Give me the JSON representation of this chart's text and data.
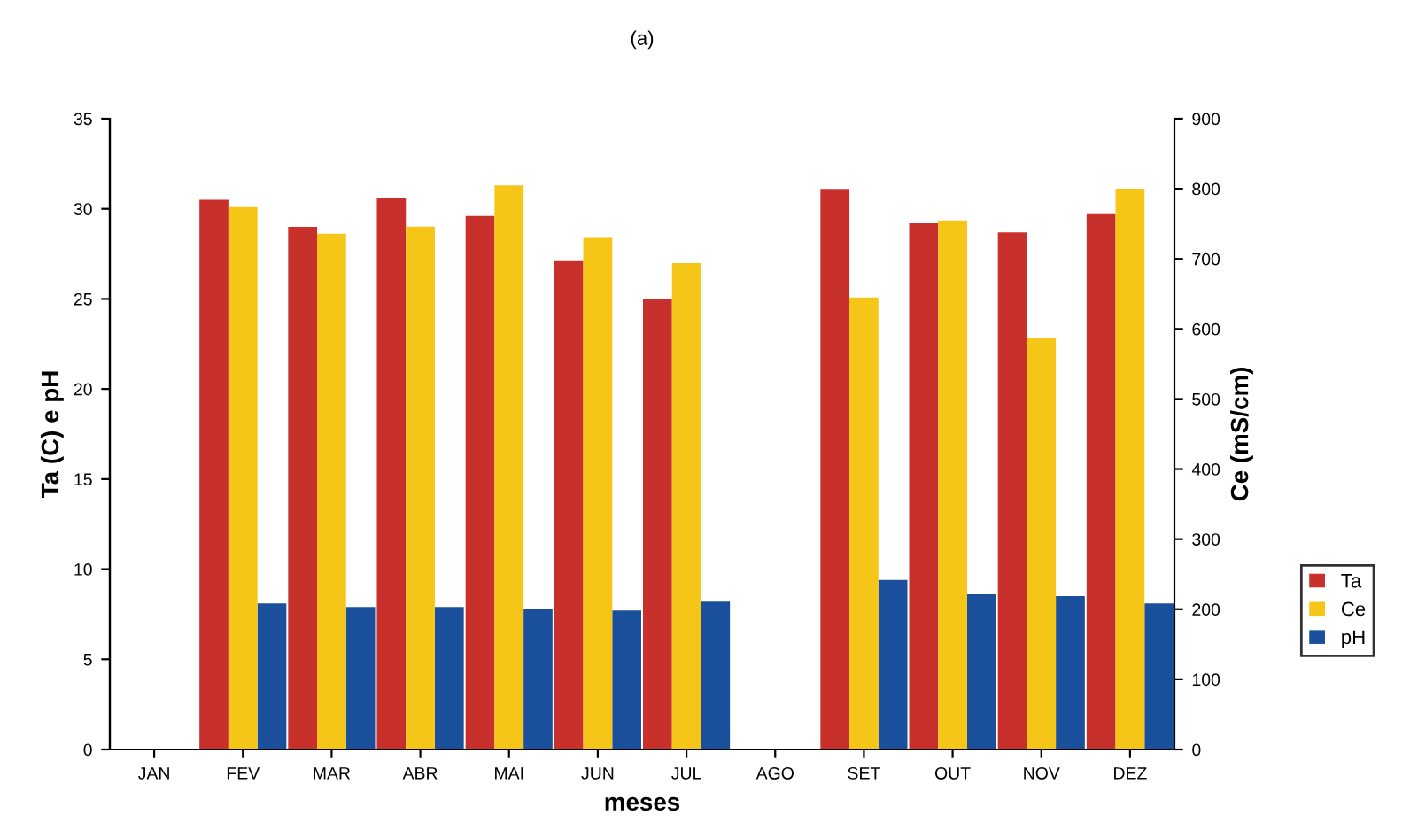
{
  "chart_data": {
    "type": "bar",
    "title": "(a)",
    "xlabel": "meses",
    "ylabel": "Ta (C) e pH",
    "y2label": "Ce (mS/cm)",
    "categories": [
      "JAN",
      "FEV",
      "MAR",
      "ABR",
      "MAI",
      "JUN",
      "JUL",
      "AGO",
      "SET",
      "OUT",
      "NOV",
      "DEZ"
    ],
    "series": [
      {
        "name": "Ta",
        "color": "#c8302c",
        "values": [
          null,
          30.5,
          29.0,
          30.6,
          29.6,
          27.1,
          25.0,
          null,
          31.1,
          29.2,
          28.7,
          29.7
        ]
      },
      {
        "name": "Ce",
        "color": "#f5c518",
        "axis": "y2",
        "values": [
          null,
          774,
          736,
          746,
          805,
          730,
          694,
          null,
          645,
          755,
          587,
          800
        ]
      },
      {
        "name": "pH",
        "color": "#1a4f9c",
        "values": [
          null,
          8.1,
          7.9,
          7.9,
          7.8,
          7.7,
          8.2,
          null,
          9.4,
          8.6,
          8.5,
          8.1
        ]
      }
    ],
    "ylim": [
      0,
      35
    ],
    "yticks": [
      0,
      5,
      10,
      15,
      20,
      25,
      30,
      35
    ],
    "y2lim": [
      0,
      900
    ],
    "y2ticks": [
      0,
      100,
      200,
      300,
      400,
      500,
      600,
      700,
      800,
      900
    ],
    "grid": false,
    "legend": "right"
  }
}
